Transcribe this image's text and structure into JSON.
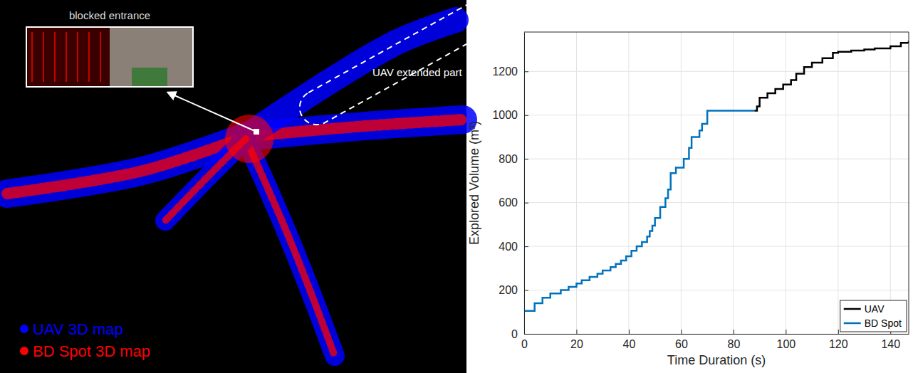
{
  "chart_data": {
    "type": "line",
    "x_label": "Time Duration (s)",
    "y_label": "Explored Volume (m³)",
    "xlim": [
      0,
      147
    ],
    "xticks": [
      0,
      20,
      40,
      60,
      80,
      100,
      120,
      140
    ],
    "ylim": [
      0,
      1380
    ],
    "yticks": [
      0,
      200,
      400,
      600,
      800,
      1000,
      1200
    ],
    "grid": true,
    "legend": "bottom-right",
    "line_style": "step",
    "series": [
      {
        "name": "UAV",
        "color": "#000000",
        "x": [
          88,
          89,
          90,
          93,
          96,
          99,
          102,
          104,
          107,
          110,
          114,
          118,
          120,
          125,
          130,
          134,
          140,
          144,
          147
        ],
        "values": [
          1020,
          1040,
          1080,
          1100,
          1120,
          1140,
          1160,
          1190,
          1220,
          1240,
          1260,
          1285,
          1290,
          1295,
          1300,
          1305,
          1315,
          1330,
          1340
        ]
      },
      {
        "name": "BD Spot",
        "color": "#0072bd",
        "x": [
          0,
          4,
          7,
          10,
          14,
          17,
          20,
          22,
          25,
          28,
          30,
          33,
          35,
          37,
          39,
          41,
          43,
          45,
          47,
          48,
          49,
          50,
          52,
          54,
          55,
          56,
          58,
          61,
          63,
          64,
          67,
          68,
          70,
          88
        ],
        "values": [
          105,
          140,
          165,
          185,
          200,
          215,
          230,
          245,
          260,
          275,
          290,
          305,
          320,
          335,
          355,
          380,
          400,
          420,
          445,
          470,
          495,
          530,
          580,
          620,
          660,
          735,
          760,
          800,
          850,
          900,
          930,
          960,
          1020,
          1020
        ]
      }
    ]
  },
  "map_panel": {
    "annotations": {
      "blocked_entrance": "blocked entrance",
      "uav_extended": "UAV extended part"
    },
    "legend": [
      {
        "name": "UAV 3D map",
        "color": "#0000ff"
      },
      {
        "name": "BD Spot 3D map",
        "color": "#ff0000"
      }
    ]
  }
}
